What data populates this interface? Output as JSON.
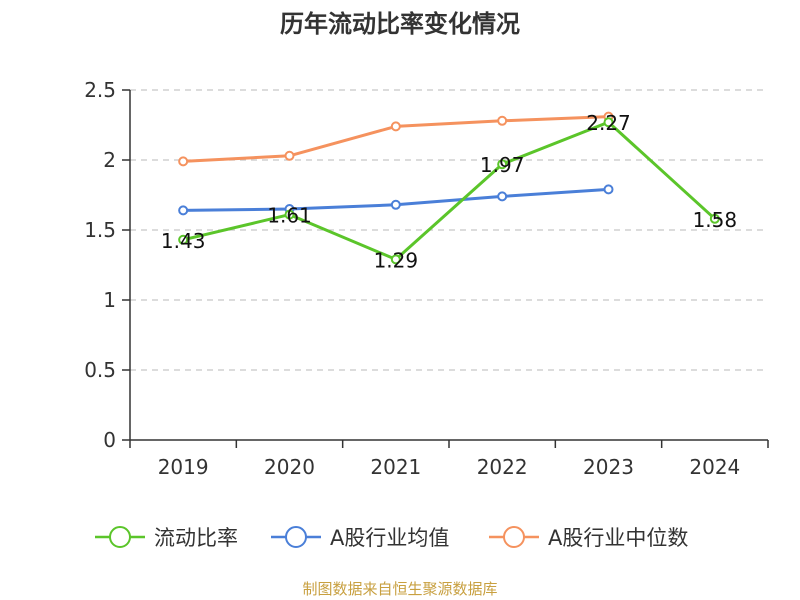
{
  "chart_data": {
    "type": "line",
    "title": "历年流动比率变化情况",
    "categories": [
      "2019",
      "2020",
      "2021",
      "2022",
      "2023",
      "2024"
    ],
    "ylim": [
      0,
      2.5
    ],
    "yticks": [
      "0",
      "0.5",
      "1",
      "1.5",
      "2",
      "2.5"
    ],
    "grid": true,
    "legend_position": "bottom",
    "series": [
      {
        "name": "流动比率",
        "color": "#5bc52a",
        "values": [
          1.43,
          1.61,
          1.29,
          1.97,
          2.27,
          1.58
        ],
        "labels": [
          "1.43",
          "1.61",
          "1.29",
          "1.97",
          "2.27",
          "1.58"
        ]
      },
      {
        "name": "A股行业均值",
        "color": "#4a7fd8",
        "values": [
          1.64,
          1.65,
          1.68,
          1.74,
          1.79,
          null
        ]
      },
      {
        "name": "A股行业中位数",
        "color": "#f5925e",
        "values": [
          1.99,
          2.03,
          2.24,
          2.28,
          2.31,
          null
        ]
      }
    ],
    "source": "制图数据来自恒生聚源数据库"
  }
}
